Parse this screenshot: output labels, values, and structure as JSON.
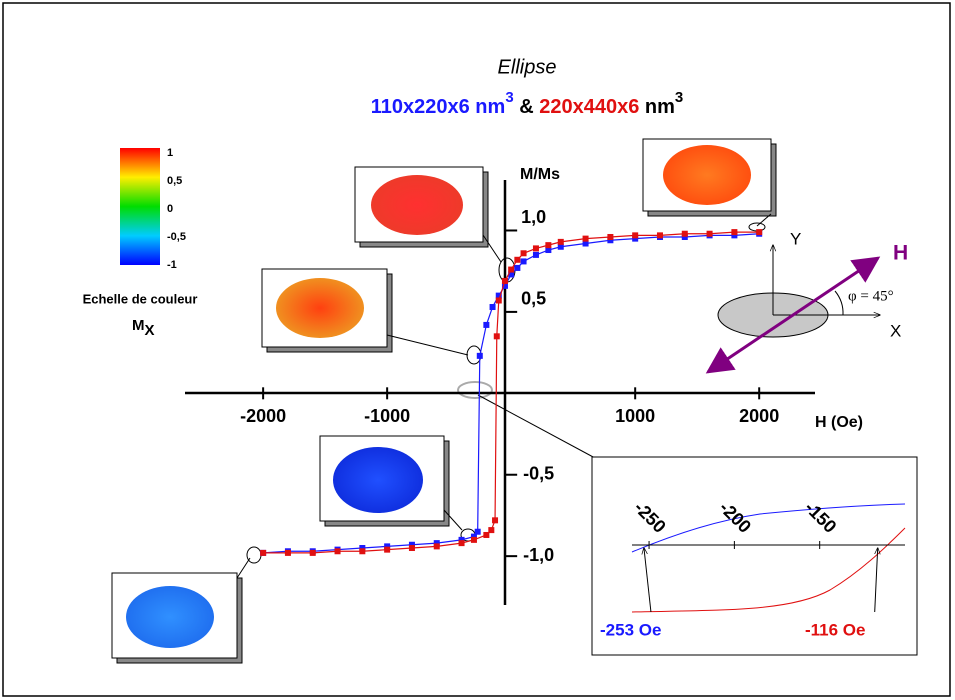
{
  "chart_data": {
    "type": "line",
    "title": "Ellipse",
    "subtitle": [
      "110x220x6 nm",
      "3",
      " & ",
      "220x440x6",
      " nm",
      "3"
    ],
    "x_label": "H (Oe)",
    "y_label": "M/Ms",
    "xlim": [
      -2630,
      2450
    ],
    "ylim": [
      -1.3,
      1.31
    ],
    "xticks": [
      -2000,
      -1000,
      1000,
      2000
    ],
    "yticks": [
      {
        "value": 1,
        "label": "1,0"
      },
      {
        "value": 0.5,
        "label": "0,5"
      },
      {
        "value": -0.5,
        "label": "-0,5"
      },
      {
        "value": -1,
        "label": "-1,0"
      }
    ],
    "series": [
      {
        "color": "#1a1aff",
        "x": [
          2000,
          1800,
          1600,
          1400,
          1200,
          1000,
          800,
          600,
          400,
          300,
          200,
          100,
          50,
          0,
          -50,
          -100,
          -150,
          -200,
          -253,
          -270,
          -300,
          -400,
          -600,
          -800,
          -1000,
          -1200,
          -1400,
          -1600,
          -1800,
          -2000
        ],
        "values": [
          0.98,
          0.97,
          0.97,
          0.96,
          0.96,
          0.95,
          0.94,
          0.92,
          0.9,
          0.88,
          0.85,
          0.81,
          0.77,
          0.73,
          0.66,
          0.6,
          0.53,
          0.42,
          0.23,
          -0.85,
          -0.88,
          -0.9,
          -0.92,
          -0.93,
          -0.94,
          -0.95,
          -0.96,
          -0.97,
          -0.97,
          -0.98
        ]
      },
      {
        "color": "#e01010",
        "x": [
          2000,
          1800,
          1600,
          1400,
          1200,
          1000,
          800,
          600,
          400,
          300,
          200,
          100,
          50,
          0,
          -50,
          -100,
          -116,
          -130,
          -160,
          -200,
          -300,
          -400,
          -600,
          -800,
          -1000,
          -1200,
          -1400,
          -1600,
          -1800,
          -2000
        ],
        "values": [
          0.99,
          0.99,
          0.98,
          0.98,
          0.97,
          0.97,
          0.96,
          0.95,
          0.93,
          0.91,
          0.89,
          0.86,
          0.82,
          0.76,
          0.69,
          0.57,
          0.35,
          -0.78,
          -0.84,
          -0.87,
          -0.9,
          -0.92,
          -0.94,
          -0.95,
          -0.96,
          -0.97,
          -0.97,
          -0.98,
          -0.98,
          -0.98
        ]
      }
    ],
    "colorbar": {
      "ticks": [
        1,
        {
          "value": 0.5,
          "label": "0,5"
        },
        0,
        {
          "value": -0.5,
          "label": "-0,5"
        },
        -1
      ],
      "label": "Echelle de couleur",
      "label_main": "M",
      "label_sub": "X"
    },
    "inset": {
      "xlim": [
        -260,
        -100
      ],
      "xticks": [
        -250,
        -200,
        -150
      ],
      "markers": [
        {
          "value": -253,
          "label": "-253 Oe",
          "color": "#1a1aff"
        },
        {
          "value": -116,
          "label": "-116 Oe",
          "color": "#e01010"
        }
      ]
    },
    "diagram": {
      "x_axis": "X",
      "y_axis": "Y",
      "field": "H",
      "angle": "φ = 45°"
    }
  }
}
